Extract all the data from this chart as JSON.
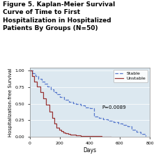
{
  "title": "Figure 5. Kaplan-Meier Survival\nCurve of Time to First\nHospitalization in Hospitalized\nPatients By Groups (N=50)",
  "xlabel": "Days",
  "ylabel": "Hospitalization-free Survival",
  "xlim": [
    0,
    800
  ],
  "ylim": [
    0,
    1.05
  ],
  "xticks": [
    0,
    200,
    400,
    600,
    800
  ],
  "yticks": [
    0.0,
    0.25,
    0.5,
    0.75,
    1.0
  ],
  "ytick_labels": [
    "0.00",
    "0.25",
    "0.50",
    "0.75",
    "1.00"
  ],
  "pvalue": "P=0.0089",
  "fig_bg": "#cdd9e5",
  "plot_bg": "#dce8f0",
  "stable_color": "#5577cc",
  "unstable_color": "#993333",
  "stable_x": [
    0,
    20,
    40,
    60,
    80,
    100,
    120,
    140,
    160,
    180,
    200,
    230,
    260,
    290,
    310,
    340,
    370,
    400,
    430,
    460,
    490,
    520,
    560,
    590,
    620,
    650,
    680,
    710,
    740,
    770
  ],
  "stable_y": [
    1.0,
    0.96,
    0.92,
    0.88,
    0.84,
    0.8,
    0.76,
    0.72,
    0.68,
    0.64,
    0.6,
    0.56,
    0.53,
    0.51,
    0.5,
    0.47,
    0.44,
    0.43,
    0.3,
    0.28,
    0.26,
    0.24,
    0.22,
    0.2,
    0.18,
    0.16,
    0.1,
    0.07,
    0.04,
    0.01
  ],
  "unstable_x": [
    0,
    15,
    30,
    50,
    70,
    90,
    110,
    130,
    150,
    165,
    180,
    195,
    210,
    225,
    240,
    255,
    270,
    290,
    310,
    340,
    380,
    430,
    480,
    530,
    540
  ],
  "unstable_y": [
    1.0,
    0.92,
    0.84,
    0.76,
    0.68,
    0.58,
    0.48,
    0.38,
    0.28,
    0.2,
    0.14,
    0.1,
    0.08,
    0.06,
    0.05,
    0.04,
    0.03,
    0.025,
    0.02,
    0.01,
    0.005,
    0.003,
    0.001,
    0.0,
    0.0
  ]
}
